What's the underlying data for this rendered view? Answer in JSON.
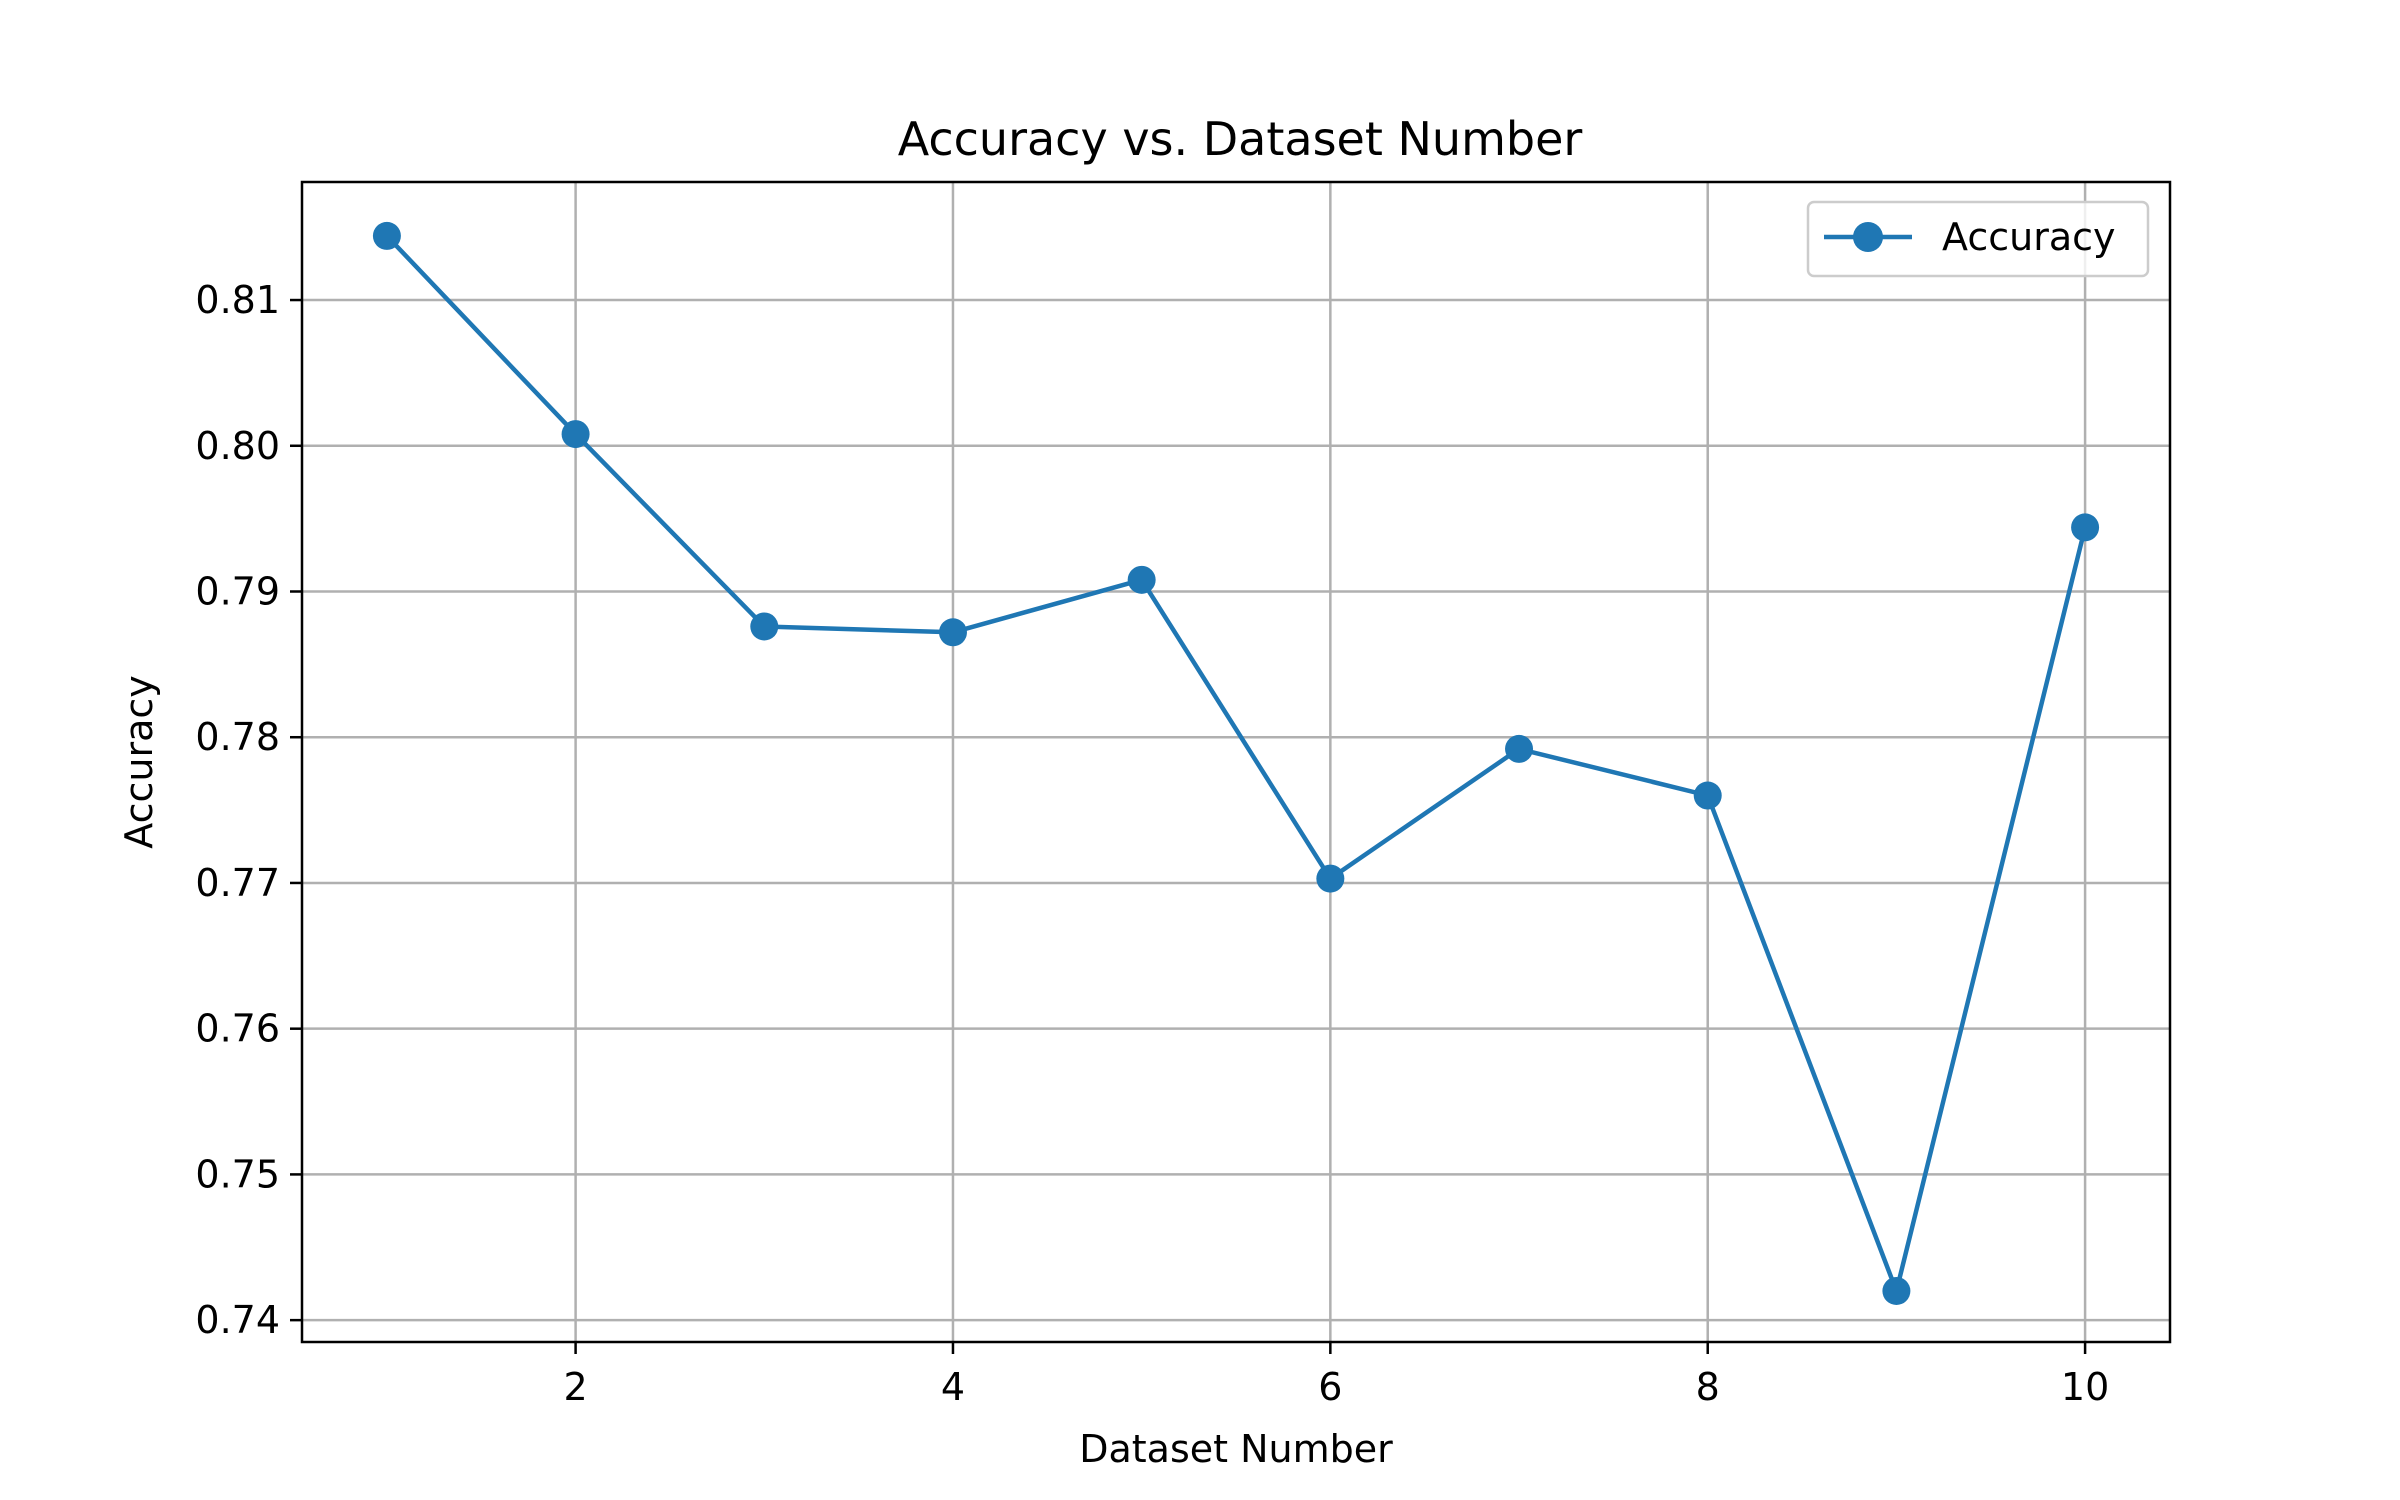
{
  "chart_data": {
    "type": "line",
    "title": "Accuracy vs. Dataset Number",
    "xlabel": "Dataset Number",
    "ylabel": "Accuracy",
    "xlim": [
      0.55,
      10.45
    ],
    "ylim": [
      0.7385,
      0.8181
    ],
    "xticks": [
      2,
      4,
      6,
      8,
      10
    ],
    "yticks": [
      0.74,
      0.75,
      0.76,
      0.77,
      0.78,
      0.79,
      0.8,
      0.81
    ],
    "xtick_labels": [
      "2",
      "4",
      "6",
      "8",
      "10"
    ],
    "ytick_labels": [
      "0.74",
      "0.75",
      "0.76",
      "0.77",
      "0.78",
      "0.79",
      "0.80",
      "0.81"
    ],
    "grid": true,
    "legend": "upper-right",
    "series": [
      {
        "name": "Accuracy",
        "color": "#1f77b4",
        "marker": "circle",
        "x": [
          1,
          2,
          3,
          4,
          5,
          6,
          7,
          8,
          9,
          10
        ],
        "values": [
          0.8144,
          0.8008,
          0.7876,
          0.7872,
          0.7908,
          0.7703,
          0.7792,
          0.776,
          0.742,
          0.7944
        ]
      }
    ]
  }
}
